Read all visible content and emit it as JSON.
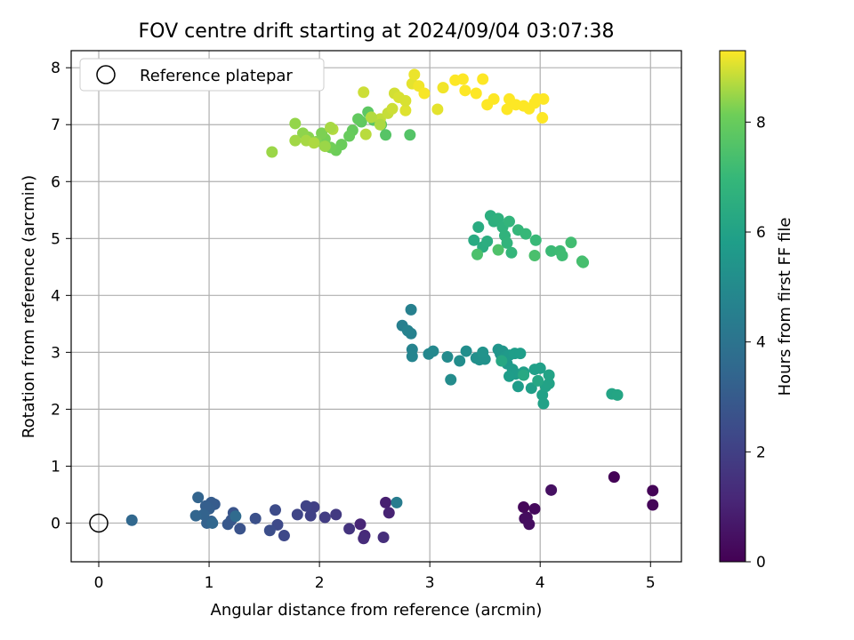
{
  "chart_data": {
    "type": "scatter",
    "title": "FOV centre drift starting at 2024/09/04 03:07:38",
    "xlabel": "Angular distance from reference (arcmin)",
    "ylabel": "Rotation from reference (arcmin)",
    "xlim": [
      -0.25,
      5.28
    ],
    "ylim": [
      -0.68,
      8.3
    ],
    "xticks": [
      0,
      1,
      2,
      3,
      4,
      5
    ],
    "yticks": [
      0,
      1,
      2,
      3,
      4,
      5,
      6,
      7,
      8
    ],
    "grid": true,
    "legend": {
      "position": "top-left",
      "entries": [
        "Reference platepar"
      ]
    },
    "reference_point": {
      "x": 0,
      "y": 0
    },
    "colorbar": {
      "label": "Hours from first FF file",
      "colormap": "viridis",
      "range": [
        0,
        9.3
      ],
      "ticks": [
        0,
        2,
        4,
        6,
        8
      ]
    },
    "points": [
      [
        4.67,
        0.81,
        0.05
      ],
      [
        5.02,
        0.57,
        0.1
      ],
      [
        5.02,
        0.32,
        0.15
      ],
      [
        3.85,
        0.28,
        0.2
      ],
      [
        3.95,
        0.25,
        0.25
      ],
      [
        3.88,
        0.1,
        0.3
      ],
      [
        3.86,
        0.08,
        0.35
      ],
      [
        3.9,
        -0.02,
        0.4
      ],
      [
        4.1,
        0.58,
        0.45
      ],
      [
        2.6,
        0.36,
        0.9
      ],
      [
        2.63,
        0.18,
        1.0
      ],
      [
        2.37,
        -0.02,
        1.1
      ],
      [
        2.41,
        -0.22,
        1.2
      ],
      [
        2.4,
        -0.27,
        1.3
      ],
      [
        2.58,
        -0.25,
        1.4
      ],
      [
        2.27,
        -0.1,
        1.6
      ],
      [
        2.15,
        0.15,
        1.8
      ],
      [
        2.05,
        0.1,
        1.9
      ],
      [
        1.95,
        0.28,
        2.0
      ],
      [
        1.92,
        0.13,
        2.05
      ],
      [
        1.88,
        0.3,
        2.1
      ],
      [
        1.8,
        0.15,
        2.2
      ],
      [
        1.68,
        -0.22,
        2.3
      ],
      [
        1.62,
        -0.03,
        2.35
      ],
      [
        1.6,
        0.23,
        2.4
      ],
      [
        1.55,
        -0.13,
        2.5
      ],
      [
        1.42,
        0.08,
        2.6
      ],
      [
        1.28,
        -0.1,
        2.7
      ],
      [
        1.22,
        0.18,
        2.75
      ],
      [
        1.2,
        0.05,
        2.8
      ],
      [
        1.17,
        -0.02,
        2.9
      ],
      [
        1.05,
        0.33,
        3.0
      ],
      [
        1.02,
        0.36,
        3.05
      ],
      [
        1.0,
        0.25,
        3.1
      ],
      [
        0.97,
        0.3,
        3.15
      ],
      [
        1.02,
        0.03,
        3.2
      ],
      [
        0.98,
        0.0,
        3.25
      ],
      [
        0.95,
        0.15,
        3.3
      ],
      [
        0.9,
        0.45,
        3.35
      ],
      [
        0.88,
        0.13,
        3.4
      ],
      [
        1.03,
        0.0,
        3.45
      ],
      [
        0.3,
        0.05,
        3.5
      ],
      [
        1.24,
        0.12,
        3.6
      ],
      [
        2.7,
        0.36,
        4.4
      ],
      [
        2.75,
        3.47,
        4.5
      ],
      [
        2.83,
        3.75,
        4.55
      ],
      [
        2.83,
        3.33,
        4.6
      ],
      [
        2.8,
        3.38,
        4.65
      ],
      [
        2.84,
        3.05,
        4.7
      ],
      [
        2.84,
        2.93,
        4.75
      ],
      [
        2.99,
        2.97,
        4.85
      ],
      [
        3.03,
        3.02,
        4.9
      ],
      [
        3.16,
        2.92,
        5.0
      ],
      [
        3.19,
        2.52,
        5.05
      ],
      [
        3.27,
        2.85,
        5.1
      ],
      [
        3.33,
        3.02,
        5.15
      ],
      [
        3.42,
        2.9,
        5.2
      ],
      [
        3.45,
        2.87,
        5.25
      ],
      [
        3.5,
        2.88,
        5.3
      ],
      [
        3.48,
        3.0,
        5.35
      ],
      [
        3.62,
        3.05,
        5.4
      ],
      [
        3.64,
        2.97,
        5.45
      ],
      [
        3.66,
        3.02,
        5.5
      ],
      [
        3.68,
        2.92,
        5.55
      ],
      [
        3.7,
        2.8,
        5.6
      ],
      [
        3.72,
        2.95,
        5.65
      ],
      [
        3.75,
        2.7,
        5.7
      ],
      [
        3.78,
        2.62,
        5.72
      ],
      [
        3.8,
        2.4,
        5.75
      ],
      [
        3.72,
        2.58,
        5.78
      ],
      [
        3.77,
        2.98,
        5.8
      ],
      [
        3.82,
        2.98,
        5.82
      ],
      [
        3.85,
        2.65,
        5.85
      ],
      [
        3.92,
        2.37,
        5.88
      ],
      [
        3.95,
        2.7,
        5.9
      ],
      [
        4.0,
        2.72,
        5.92
      ],
      [
        4.02,
        2.25,
        5.94
      ],
      [
        4.03,
        2.1,
        5.96
      ],
      [
        4.05,
        2.4,
        5.98
      ],
      [
        4.08,
        2.45,
        6.0
      ],
      [
        4.08,
        2.6,
        6.05
      ],
      [
        4.65,
        2.27,
        6.1
      ],
      [
        4.7,
        2.25,
        6.15
      ],
      [
        3.98,
        2.5,
        6.2
      ],
      [
        3.65,
        2.85,
        6.25
      ],
      [
        3.85,
        2.6,
        6.3
      ],
      [
        3.4,
        4.97,
        6.35
      ],
      [
        3.44,
        5.2,
        6.4
      ],
      [
        3.48,
        4.85,
        6.45
      ],
      [
        3.52,
        4.95,
        6.5
      ],
      [
        3.55,
        5.4,
        6.55
      ],
      [
        3.58,
        5.3,
        6.6
      ],
      [
        3.62,
        5.35,
        6.65
      ],
      [
        3.66,
        5.2,
        6.7
      ],
      [
        3.68,
        5.05,
        6.75
      ],
      [
        3.7,
        4.92,
        6.8
      ],
      [
        3.72,
        5.3,
        6.85
      ],
      [
        3.74,
        4.75,
        6.9
      ],
      [
        3.8,
        5.15,
        6.95
      ],
      [
        3.87,
        5.08,
        7.0
      ],
      [
        3.96,
        4.97,
        7.05
      ],
      [
        4.1,
        4.78,
        7.1
      ],
      [
        4.18,
        4.78,
        7.15
      ],
      [
        4.2,
        4.7,
        7.2
      ],
      [
        4.28,
        4.93,
        7.25
      ],
      [
        4.38,
        4.6,
        7.3
      ],
      [
        4.39,
        4.58,
        7.35
      ],
      [
        3.95,
        4.7,
        7.4
      ],
      [
        3.43,
        4.72,
        7.45
      ],
      [
        3.62,
        4.8,
        7.5
      ],
      [
        2.82,
        6.82,
        7.6
      ],
      [
        2.6,
        6.82,
        7.65
      ],
      [
        2.56,
        7.0,
        7.7
      ],
      [
        2.49,
        7.08,
        7.75
      ],
      [
        2.44,
        7.22,
        7.8
      ],
      [
        2.38,
        7.05,
        7.85
      ],
      [
        2.35,
        7.1,
        7.9
      ],
      [
        2.3,
        6.9,
        7.95
      ],
      [
        2.27,
        6.8,
        8.0
      ],
      [
        2.2,
        6.65,
        8.05
      ],
      [
        2.15,
        6.55,
        8.1
      ],
      [
        2.1,
        6.6,
        8.15
      ],
      [
        2.05,
        6.75,
        8.2
      ],
      [
        2.02,
        6.85,
        8.25
      ],
      [
        1.97,
        6.7,
        8.3
      ],
      [
        1.9,
        6.78,
        8.35
      ],
      [
        1.85,
        6.85,
        8.4
      ],
      [
        1.78,
        7.02,
        8.45
      ],
      [
        1.57,
        6.52,
        8.5
      ],
      [
        1.78,
        6.72,
        8.55
      ],
      [
        1.88,
        6.72,
        8.6
      ],
      [
        1.95,
        6.68,
        8.65
      ],
      [
        2.12,
        6.92,
        8.7
      ],
      [
        2.42,
        6.83,
        8.75
      ],
      [
        2.55,
        7.1,
        8.8
      ],
      [
        2.62,
        7.2,
        8.85
      ],
      [
        2.66,
        7.28,
        8.9
      ],
      [
        2.68,
        7.55,
        8.95
      ],
      [
        2.72,
        7.48,
        9.0
      ],
      [
        2.78,
        7.25,
        9.05
      ],
      [
        2.84,
        7.72,
        9.1
      ],
      [
        2.86,
        7.88,
        9.15
      ],
      [
        2.9,
        7.68,
        9.2
      ],
      [
        2.95,
        7.55,
        9.25
      ],
      [
        3.07,
        7.27,
        9.1
      ],
      [
        3.12,
        7.65,
        9.2
      ],
      [
        3.23,
        7.78,
        9.3
      ],
      [
        3.3,
        7.8,
        9.3
      ],
      [
        3.32,
        7.6,
        9.3
      ],
      [
        3.42,
        7.55,
        9.3
      ],
      [
        3.48,
        7.8,
        9.3
      ],
      [
        3.52,
        7.35,
        9.3
      ],
      [
        3.58,
        7.45,
        9.3
      ],
      [
        3.7,
        7.27,
        9.3
      ],
      [
        3.72,
        7.45,
        9.3
      ],
      [
        3.78,
        7.35,
        9.3
      ],
      [
        3.85,
        7.33,
        9.3
      ],
      [
        3.9,
        7.28,
        9.3
      ],
      [
        3.95,
        7.38,
        9.3
      ],
      [
        3.97,
        7.45,
        9.3
      ],
      [
        4.02,
        7.12,
        9.3
      ],
      [
        4.03,
        7.45,
        9.3
      ],
      [
        2.4,
        7.57,
        8.9
      ],
      [
        2.78,
        7.42,
        9.0
      ],
      [
        2.47,
        7.13,
        8.7
      ],
      [
        2.55,
        7.0,
        8.65
      ],
      [
        2.05,
        6.62,
        8.5
      ],
      [
        2.1,
        6.95,
        8.6
      ]
    ]
  }
}
